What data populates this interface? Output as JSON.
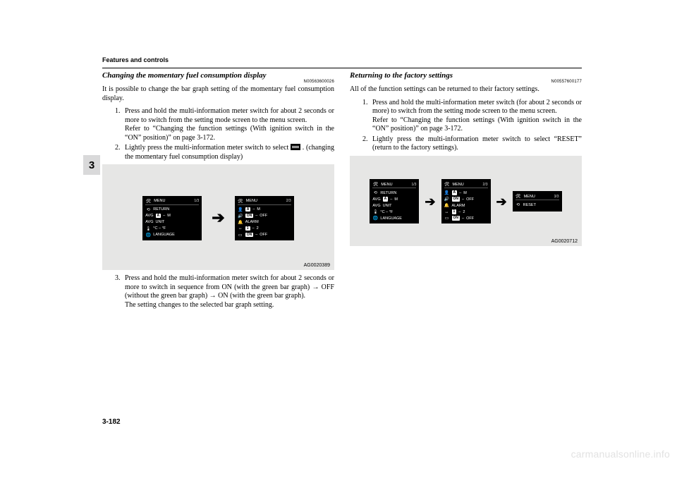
{
  "chrome": {
    "running_head": "Features and controls",
    "tab_number": "3",
    "page_number": "3-182",
    "watermark": "carmanualsonline.info"
  },
  "left": {
    "title": "Changing the momentary fuel consumption display",
    "docnum": "N00563600026",
    "intro": "It is possible to change the bar graph setting of the momentary fuel consumption display.",
    "steps": [
      "Press and hold the multi-information meter switch for about 2 seconds or more to switch from the setting mode screen to the menu screen.\nRefer to “Changing the function settings (With ignition switch in the “ON” position)” on page 3-172.",
      "Lightly press the multi-information meter switch to select      . (changing the momentary fuel consumption display)",
      "Press and hold the multi-information meter switch for about 2 seconds or more to switch in sequence from ON (with the green bar graph) → OFF (without the green bar graph) → ON (with the green bar graph).\nThe setting changes to the selected bar graph setting."
    ],
    "fig_ref": "AG0020389",
    "screens": {
      "s1": {
        "page": "1/3",
        "lines": [
          {
            "icon": "⟲",
            "label": "RETURN"
          },
          {
            "prefix": "AVG",
            "pill": "A",
            "mid": "–",
            "suffix": "M"
          },
          {
            "prefix": "AVG",
            "label": "UNIT"
          },
          {
            "icon": "🌡",
            "label": "°C  –  °F"
          },
          {
            "icon": "🌐",
            "label": "LANGUAGE"
          }
        ]
      },
      "s2": {
        "page": "2/3",
        "lines": [
          {
            "icon": "👤",
            "pill": "A",
            "mid": "–",
            "suffix": "M"
          },
          {
            "icon": "🔊",
            "pill": "ON",
            "mid": "–",
            "suffix": "OFF"
          },
          {
            "icon": "🔔",
            "label": "ALARM"
          },
          {
            "icon": "↔",
            "pill": "1",
            "mid": "–",
            "suffix": "2"
          },
          {
            "icon": "▭",
            "pill": "ON",
            "mid": "–",
            "suffix": "OFF"
          }
        ]
      }
    }
  },
  "right": {
    "title": "Returning to the factory settings",
    "docnum": "N00557600177",
    "intro": "All of the function settings can be returned to their factory settings.",
    "steps": [
      "Press and hold the multi-information meter switch (for about 2 seconds or more) to switch from the setting mode screen to the menu screen.\nRefer to “Changing the function settings (With ignition switch in the “ON” position)” on page 3-172.",
      "Lightly press the multi-information meter switch to select “RESET” (return to the factory settings)."
    ],
    "fig_ref": "AG0020712",
    "screens": {
      "s1": {
        "page": "1/3",
        "lines": [
          {
            "icon": "⟲",
            "label": "RETURN"
          },
          {
            "prefix": "AVG",
            "pill": "A",
            "mid": "–",
            "suffix": "M"
          },
          {
            "prefix": "AVG",
            "label": "UNIT"
          },
          {
            "icon": "🌡",
            "label": "°C  –  °F"
          },
          {
            "icon": "🌐",
            "label": "LANGUAGE"
          }
        ]
      },
      "s2": {
        "page": "2/3",
        "lines": [
          {
            "icon": "👤",
            "pill": "A",
            "mid": "–",
            "suffix": "M"
          },
          {
            "icon": "🔊",
            "pill": "ON",
            "mid": "–",
            "suffix": "OFF"
          },
          {
            "icon": "🔔",
            "label": "ALARM"
          },
          {
            "icon": "↔",
            "pill": "1",
            "mid": "–",
            "suffix": "2"
          },
          {
            "icon": "▭",
            "pill": "ON",
            "mid": "–",
            "suffix": "OFF"
          }
        ]
      },
      "s3": {
        "page": "3/3",
        "lines": [
          {
            "icon": "⟲",
            "label": "RESET"
          }
        ]
      }
    }
  },
  "menu_label": "MENU",
  "menu_icon": "🛠"
}
